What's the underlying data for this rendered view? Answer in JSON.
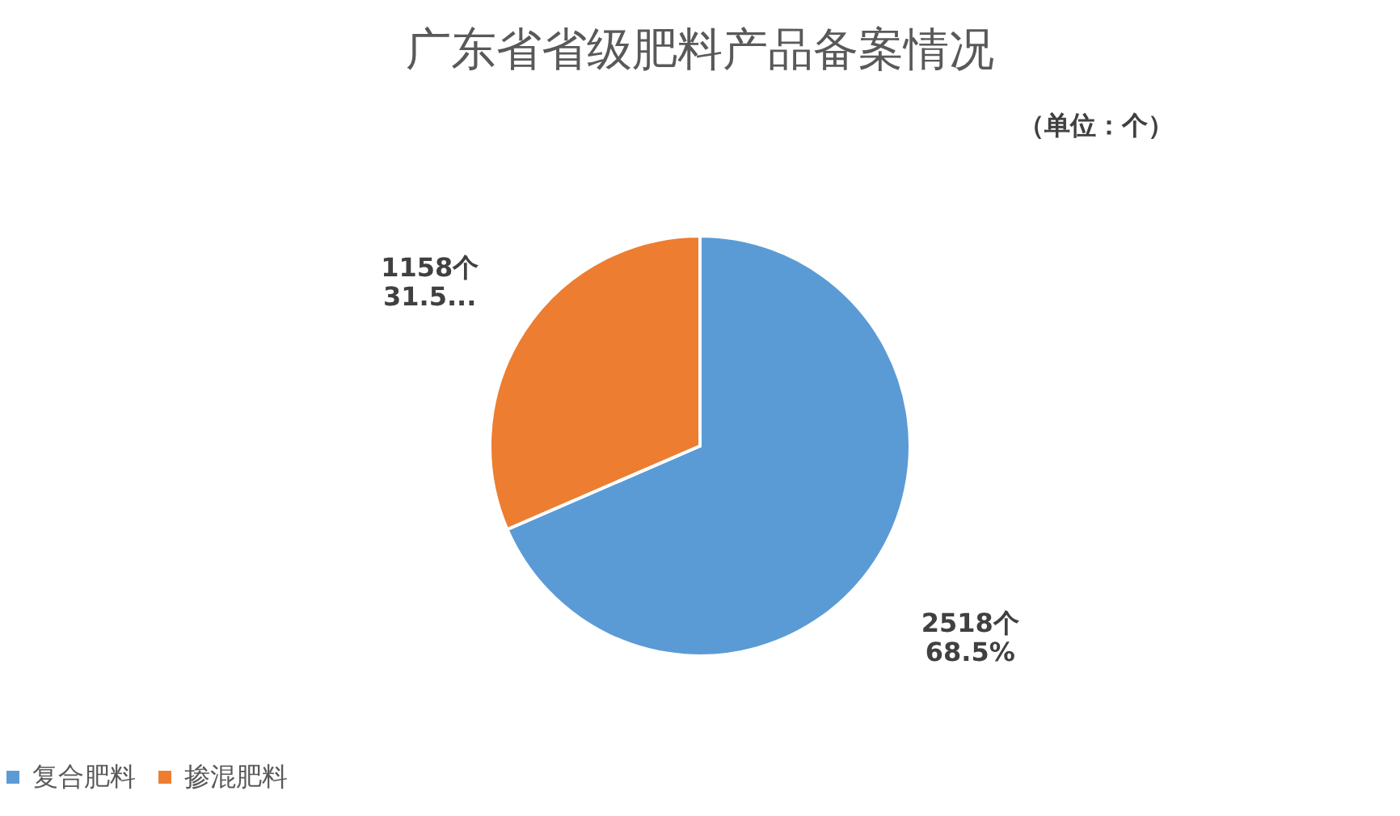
{
  "chart_data": {
    "type": "pie",
    "title": "广东省省级肥料产品备案情况",
    "subtitle": "（单位：个）",
    "categories": [
      "复合肥料",
      "掺混肥料"
    ],
    "values": [
      2518,
      1158
    ],
    "colors": [
      "#5b9bd5",
      "#ed7d31"
    ],
    "value_labels": [
      "2518个\n68.5%",
      "1158个\n31.5..."
    ],
    "legend": "bottom"
  }
}
